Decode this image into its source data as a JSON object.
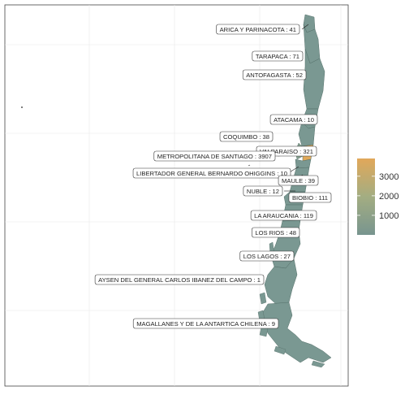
{
  "map": {
    "regions": [
      {
        "name": "ARICA Y PARINACOTA",
        "count": "41"
      },
      {
        "name": "TARAPACA",
        "count": "71"
      },
      {
        "name": "ANTOFAGASTA",
        "count": "52"
      },
      {
        "name": "ATACAMA",
        "count": "10"
      },
      {
        "name": "COQUIMBO",
        "count": "38"
      },
      {
        "name": "VALPARAISO",
        "count": "321"
      },
      {
        "name": "METROPOLITANA DE SANTIAGO",
        "count": "3907"
      },
      {
        "name": "LIBERTADOR GENERAL BERNARDO OHIGGINS",
        "count": "10"
      },
      {
        "name": "MAULE",
        "count": "39"
      },
      {
        "name": "NUBLE",
        "count": "12"
      },
      {
        "name": "BIOBIO",
        "count": "111"
      },
      {
        "name": "LA ARAUCANIA",
        "count": "119"
      },
      {
        "name": "LOS RIOS",
        "count": "48"
      },
      {
        "name": "LOS LAGOS",
        "count": "27"
      },
      {
        "name": "AYSEN DEL GENERAL CARLOS IBANEZ DEL CAMPO",
        "count": "1"
      },
      {
        "name": "MAGALLANES Y DE LA ANTARTICA CHILENA",
        "count": "9"
      }
    ]
  },
  "legend": {
    "ticks": [
      "3000",
      "2000",
      "1000"
    ],
    "tick_values": [
      3000,
      2000,
      1000
    ],
    "min": 0,
    "max": 3907,
    "colors": [
      "#7a9892",
      "#a8b27e",
      "#e1a95a"
    ]
  },
  "colors": {
    "low": "#7a9892",
    "high": "#e0a95a",
    "panel_border": "#444444",
    "grid": "#e6e6e6"
  }
}
